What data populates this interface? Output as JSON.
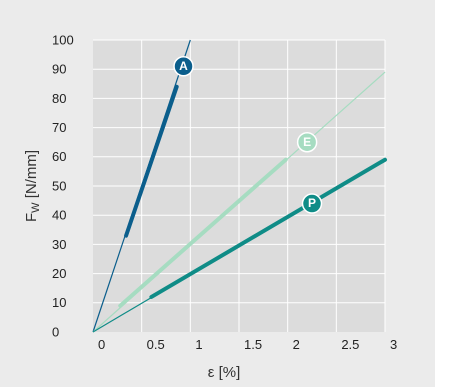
{
  "chart_data": {
    "type": "line",
    "title": "",
    "xlabel": "ε [%]",
    "ylabel": "F",
    "ylabel_subscript": "W",
    "ylabel_unit": " [N/mm]",
    "xlim": [
      0,
      3
    ],
    "ylim": [
      0,
      100
    ],
    "x_ticks": [
      "0",
      "0.5",
      "1",
      "1.5",
      "2",
      "2.5",
      "3"
    ],
    "x_tick_values": [
      0,
      0.5,
      1,
      1.5,
      2,
      2.5,
      3
    ],
    "y_ticks": [
      "0",
      "10",
      "20",
      "30",
      "40",
      "50",
      "60",
      "70",
      "80",
      "90",
      "100"
    ],
    "y_tick_values": [
      0,
      10,
      20,
      30,
      40,
      50,
      60,
      70,
      80,
      90,
      100
    ],
    "grid": true,
    "series": [
      {
        "name": "A",
        "color": "#0b5e8c",
        "x": [
          0,
          1.0
        ],
        "y": [
          0,
          100
        ],
        "highlight_x": [
          0.34,
          0.86
        ],
        "highlight_y": [
          33,
          84
        ],
        "marker_x": 0.93,
        "marker_y": 91
      },
      {
        "name": "E",
        "color": "#a6dcc1",
        "x": [
          0,
          3
        ],
        "y": [
          0,
          89
        ],
        "highlight_x": [
          0.28,
          1.98
        ],
        "highlight_y": [
          9,
          59
        ],
        "marker_x": 2.2,
        "marker_y": 65
      },
      {
        "name": "P",
        "color": "#0f8c87",
        "x": [
          0,
          3
        ],
        "y": [
          0,
          59
        ],
        "highlight_x": [
          0.6,
          3.0
        ],
        "highlight_y": [
          12,
          59
        ],
        "marker_x": 2.25,
        "marker_y": 44
      }
    ]
  }
}
